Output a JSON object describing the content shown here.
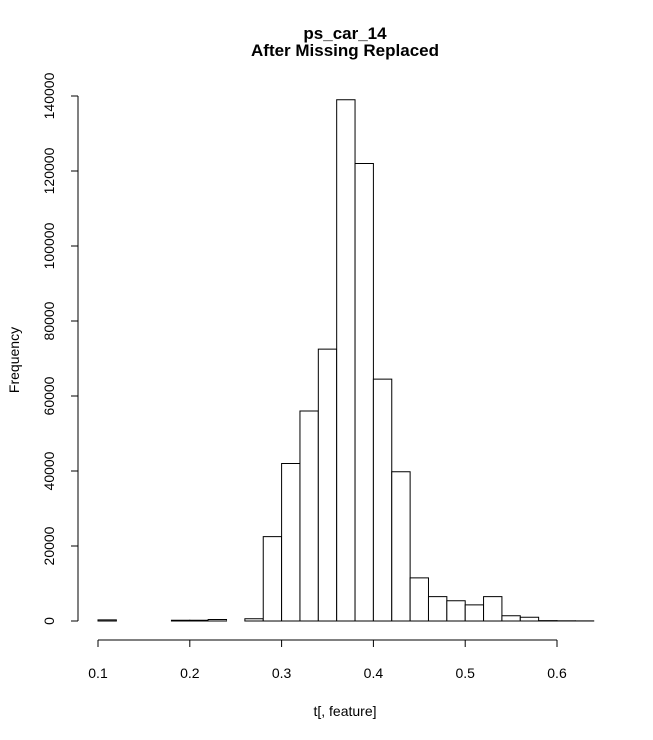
{
  "chart_data": {
    "type": "bar",
    "title": "ps_car_14",
    "subtitle": "After Missing Replaced",
    "xlabel": "t[, feature]",
    "ylabel": "Frequency",
    "xlim": [
      0.1,
      0.6
    ],
    "ylim": [
      0,
      140000
    ],
    "x_ticks": [
      "0.1",
      "0.2",
      "0.3",
      "0.4",
      "0.5",
      "0.6"
    ],
    "y_ticks": [
      "0",
      "20000",
      "40000",
      "60000",
      "80000",
      "100000",
      "120000",
      "140000"
    ],
    "bins": [
      {
        "start": 0.1,
        "end": 0.12,
        "count": 300
      },
      {
        "start": 0.12,
        "end": 0.14,
        "count": 0
      },
      {
        "start": 0.14,
        "end": 0.16,
        "count": 0
      },
      {
        "start": 0.16,
        "end": 0.18,
        "count": 0
      },
      {
        "start": 0.18,
        "end": 0.2,
        "count": 200
      },
      {
        "start": 0.2,
        "end": 0.22,
        "count": 200
      },
      {
        "start": 0.22,
        "end": 0.24,
        "count": 400
      },
      {
        "start": 0.24,
        "end": 0.26,
        "count": 0
      },
      {
        "start": 0.26,
        "end": 0.28,
        "count": 600
      },
      {
        "start": 0.28,
        "end": 0.3,
        "count": 22500
      },
      {
        "start": 0.3,
        "end": 0.32,
        "count": 42000
      },
      {
        "start": 0.32,
        "end": 0.34,
        "count": 56000
      },
      {
        "start": 0.34,
        "end": 0.36,
        "count": 72500
      },
      {
        "start": 0.36,
        "end": 0.38,
        "count": 139000
      },
      {
        "start": 0.38,
        "end": 0.4,
        "count": 122000
      },
      {
        "start": 0.4,
        "end": 0.42,
        "count": 64500
      },
      {
        "start": 0.42,
        "end": 0.44,
        "count": 39800
      },
      {
        "start": 0.44,
        "end": 0.46,
        "count": 11500
      },
      {
        "start": 0.46,
        "end": 0.48,
        "count": 6500
      },
      {
        "start": 0.48,
        "end": 0.5,
        "count": 5400
      },
      {
        "start": 0.5,
        "end": 0.52,
        "count": 4300
      },
      {
        "start": 0.52,
        "end": 0.54,
        "count": 6500
      },
      {
        "start": 0.54,
        "end": 0.56,
        "count": 1400
      },
      {
        "start": 0.56,
        "end": 0.58,
        "count": 1000
      },
      {
        "start": 0.58,
        "end": 0.6,
        "count": 100
      },
      {
        "start": 0.6,
        "end": 0.62,
        "count": 50
      },
      {
        "start": 0.62,
        "end": 0.64,
        "count": 30
      }
    ]
  }
}
